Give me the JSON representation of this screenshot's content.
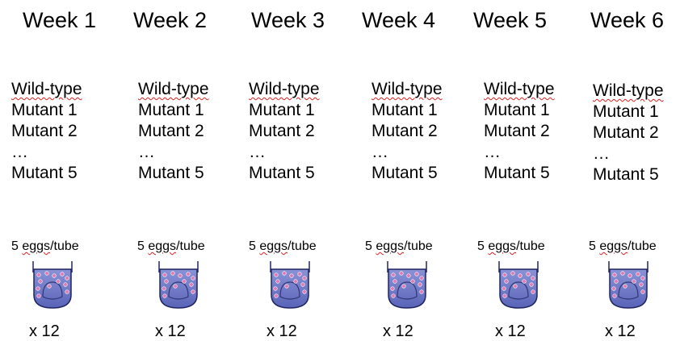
{
  "columns": [
    {
      "week": "Week 1",
      "strains": [
        "Wild-type",
        "Mutant 1",
        "Mutant 2",
        "…",
        "Mutant 5"
      ],
      "eggs_count": "5",
      "eggs_word": "eggs",
      "eggs_unit": "/tube",
      "tube_count": "x 12"
    },
    {
      "week": "Week 2",
      "strains": [
        "Wild-type",
        "Mutant 1",
        "Mutant 2",
        "…",
        "Mutant 5"
      ],
      "eggs_count": "5",
      "eggs_word": "eggs",
      "eggs_unit": "/tube",
      "tube_count": "x 12"
    },
    {
      "week": "Week 3",
      "strains": [
        "Wild-type",
        "Mutant 1",
        "Mutant 2",
        "…",
        "Mutant 5"
      ],
      "eggs_count": "5",
      "eggs_word": "eggs",
      "eggs_unit": "/tube",
      "tube_count": "x 12"
    },
    {
      "week": "Week 4",
      "strains": [
        "Wild-type",
        "Mutant 1",
        "Mutant 2",
        "…",
        "Mutant 5"
      ],
      "eggs_count": "5",
      "eggs_word": "eggs",
      "eggs_unit": "/tube",
      "tube_count": "x 12"
    },
    {
      "week": "Week 5",
      "strains": [
        "Wild-type",
        "Mutant 1",
        "Mutant 2",
        "…",
        "Mutant 5"
      ],
      "eggs_count": "5",
      "eggs_word": "eggs",
      "eggs_unit": "/tube",
      "tube_count": "x 12"
    },
    {
      "week": "Week 6",
      "strains": [
        "Wild-type",
        "Mutant 1",
        "Mutant 2",
        "…",
        "Mutant 5"
      ],
      "eggs_count": "5",
      "eggs_word": "eggs",
      "eggs_unit": "/tube",
      "tube_count": "x 12"
    }
  ],
  "colors": {
    "tube_fill_top": "#8a93d6",
    "tube_fill_bottom": "#5a64b8",
    "tube_outline": "#1f2560",
    "egg_color": "#e17ab0",
    "spellcheck_underline": "#e02020"
  },
  "icons": {
    "tube": "test-tube-with-eggs-icon"
  }
}
